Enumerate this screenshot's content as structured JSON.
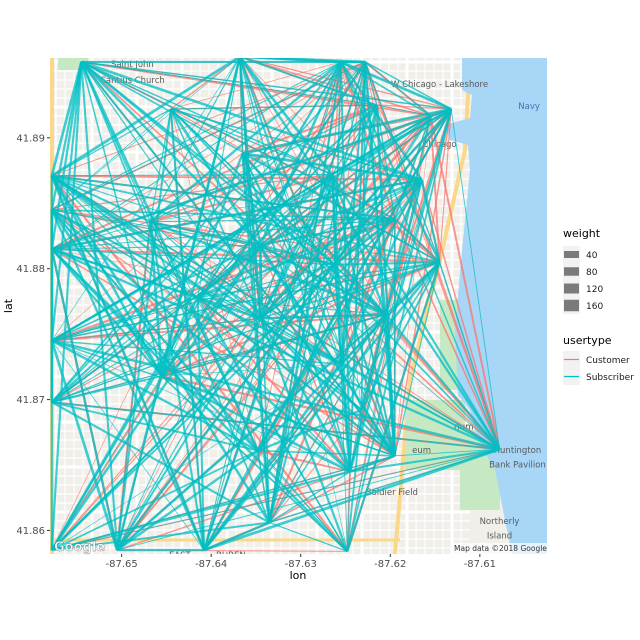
{
  "chart_data": {
    "type": "line",
    "title": "",
    "xlabel": "lon",
    "ylabel": "lat",
    "xlim": [
      -87.658,
      -87.6025
    ],
    "ylim": [
      41.8582,
      41.8961
    ],
    "x_ticks": [
      -87.65,
      -87.64,
      -87.63,
      -87.62,
      -87.61
    ],
    "x_tick_labels": [
      "-87.65",
      "-87.64",
      "-87.63",
      "-87.62",
      "-87.61"
    ],
    "y_ticks": [
      41.86,
      41.87,
      41.88,
      41.89
    ],
    "y_tick_labels": [
      "41.86",
      "41.87",
      "41.88",
      "41.89"
    ],
    "legend_position": "right",
    "legend": {
      "weight": {
        "title": "weight",
        "items": [
          "40",
          "80",
          "120",
          "160"
        ]
      },
      "usertype": {
        "title": "usertype",
        "items": [
          "Customer",
          "Subscriber"
        ]
      }
    },
    "colors": {
      "Customer": "#f8766d",
      "Subscriber": "#00bfc4"
    },
    "stations": [
      {
        "lon": -87.6545,
        "lat": 41.8958
      },
      {
        "lon": -87.6578,
        "lat": 41.8871
      },
      {
        "lon": -87.6578,
        "lat": 41.8845
      },
      {
        "lon": -87.6578,
        "lat": 41.8815
      },
      {
        "lon": -87.6578,
        "lat": 41.8745
      },
      {
        "lon": -87.6578,
        "lat": 41.8698
      },
      {
        "lon": -87.6578,
        "lat": 41.8585
      },
      {
        "lon": -87.6505,
        "lat": 41.8585
      },
      {
        "lon": -87.6408,
        "lat": 41.8585
      },
      {
        "lon": -87.6335,
        "lat": 41.8606
      },
      {
        "lon": -87.6248,
        "lat": 41.8584
      },
      {
        "lon": -87.6368,
        "lat": 41.8962
      },
      {
        "lon": -87.6365,
        "lat": 41.8888
      },
      {
        "lon": -87.6345,
        "lat": 41.8818
      },
      {
        "lon": -87.6345,
        "lat": 41.8762
      },
      {
        "lon": -87.6348,
        "lat": 41.8661
      },
      {
        "lon": -87.6415,
        "lat": 41.8778
      },
      {
        "lon": -87.6468,
        "lat": 41.8836
      },
      {
        "lon": -87.6455,
        "lat": 41.8718
      },
      {
        "lon": -87.6255,
        "lat": 41.8958
      },
      {
        "lon": -87.6228,
        "lat": 41.8958
      },
      {
        "lon": -87.6215,
        "lat": 41.8925
      },
      {
        "lon": -87.6265,
        "lat": 41.8872
      },
      {
        "lon": -87.6262,
        "lat": 41.8803
      },
      {
        "lon": -87.6255,
        "lat": 41.8727
      },
      {
        "lon": -87.6232,
        "lat": 41.8692
      },
      {
        "lon": -87.6245,
        "lat": 41.8645
      },
      {
        "lon": -87.6205,
        "lat": 41.8765
      },
      {
        "lon": -87.6195,
        "lat": 41.8657
      },
      {
        "lon": -87.6195,
        "lat": 41.8838
      },
      {
        "lon": -87.6155,
        "lat": 41.8917
      },
      {
        "lon": -87.6132,
        "lat": 41.8922
      },
      {
        "lon": -87.6078,
        "lat": 41.8662
      },
      {
        "lon": -87.6145,
        "lat": 41.8805
      },
      {
        "lon": -87.6165,
        "lat": 41.8868
      },
      {
        "lon": -87.6445,
        "lat": 41.8922
      }
    ]
  },
  "map": {
    "labels": [
      {
        "text": "Saint John",
        "lon": -87.6488,
        "lat": 41.8954,
        "style": "gray"
      },
      {
        "text": "Cantius Church",
        "lon": -87.6488,
        "lat": 41.8942,
        "style": "gray"
      },
      {
        "text": "Moody Bible",
        "lon": -87.6365,
        "lat": 41.8963,
        "style": "gray"
      },
      {
        "text": "W Chicago - Lakeshore",
        "lon": -87.6145,
        "lat": 41.8939,
        "style": "gray"
      },
      {
        "text": "Navy",
        "lon": -87.6045,
        "lat": 41.8922,
        "style": "blue"
      },
      {
        "text": "Chicago",
        "lon": -87.6145,
        "lat": 41.8893,
        "style": "gray"
      },
      {
        "text": "Huntington",
        "lon": -87.6058,
        "lat": 41.8659,
        "style": "gray"
      },
      {
        "text": "Bank Pavilion",
        "lon": -87.6058,
        "lat": 41.8648,
        "style": "gray"
      },
      {
        "text": "Soldier Field",
        "lon": -87.6198,
        "lat": 41.8627,
        "style": "gray"
      },
      {
        "text": "Northerly",
        "lon": -87.6078,
        "lat": 41.8605,
        "style": "gray"
      },
      {
        "text": "Island",
        "lon": -87.6078,
        "lat": 41.8594,
        "style": "gray"
      },
      {
        "text": "rium",
        "lon": -87.6118,
        "lat": 41.8677,
        "style": "gray"
      },
      {
        "text": "eum",
        "lon": -87.6165,
        "lat": 41.8659,
        "style": "gray"
      },
      {
        "text": "EAST",
        "lon": -87.6435,
        "lat": 41.8579,
        "style": "gray"
      },
      {
        "text": "BUREN",
        "lon": -87.6378,
        "lat": 41.8579,
        "style": "gray"
      }
    ],
    "google_logo": "Google",
    "attribution": "Map data ©2018 Google"
  }
}
